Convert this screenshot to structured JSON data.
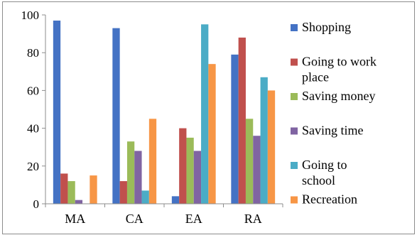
{
  "chart_data": {
    "type": "bar",
    "title": "",
    "xlabel": "",
    "ylabel": "",
    "categories": [
      "MA",
      "CA",
      "EA",
      "RA"
    ],
    "ylim": [
      0,
      100
    ],
    "yticks": [
      0,
      20,
      40,
      60,
      80,
      100
    ],
    "grid": false,
    "legend_position": "right",
    "series": [
      {
        "name": "Shopping",
        "legend_lines": [
          "Shopping"
        ],
        "color": "#4472C4",
        "values": [
          97,
          93,
          4,
          79
        ]
      },
      {
        "name": "Going to work place",
        "legend_lines": [
          "Going to work",
          "place"
        ],
        "color": "#C0504D",
        "values": [
          16,
          12,
          40,
          88
        ]
      },
      {
        "name": "Saving money",
        "legend_lines": [
          "Saving money"
        ],
        "color": "#9BBB59",
        "values": [
          12,
          33,
          35,
          45
        ]
      },
      {
        "name": "Saving time",
        "legend_lines": [
          "Saving time"
        ],
        "color": "#8064A2",
        "values": [
          2,
          28,
          28,
          36
        ]
      },
      {
        "name": "Going to school",
        "legend_lines": [
          "Going to",
          "school"
        ],
        "color": "#4BACC6",
        "values": [
          0,
          7,
          95,
          67
        ]
      },
      {
        "name": "Recreation",
        "legend_lines": [
          "Recreation"
        ],
        "color": "#F79646",
        "values": [
          15,
          45,
          74,
          60
        ]
      }
    ]
  }
}
